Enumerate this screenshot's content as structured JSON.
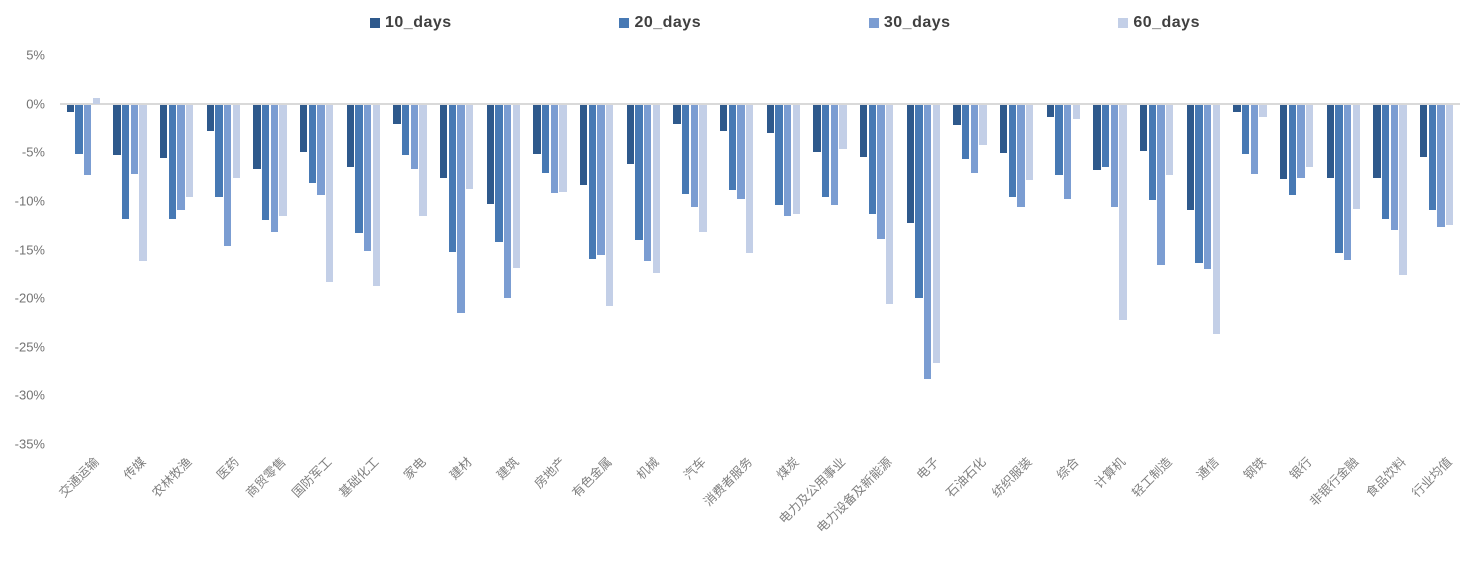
{
  "chart_data": {
    "type": "bar",
    "title": "",
    "xlabel": "",
    "ylabel": "",
    "ylim": [
      -35,
      5
    ],
    "ytick_step": 5,
    "yticks": [
      {
        "value": 5,
        "label": "5%"
      },
      {
        "value": 0,
        "label": "0%"
      },
      {
        "value": -5,
        "label": "-5%"
      },
      {
        "value": -10,
        "label": "-10%"
      },
      {
        "value": -15,
        "label": "-15%"
      },
      {
        "value": -20,
        "label": "-20%"
      },
      {
        "value": -25,
        "label": "-25%"
      },
      {
        "value": -30,
        "label": "-30%"
      },
      {
        "value": -35,
        "label": "-35%"
      }
    ],
    "grid": false,
    "zero_line_color": "#d9d9d9",
    "legend_position": "top",
    "categories": [
      "交通运输",
      "传媒",
      "农林牧渔",
      "医药",
      "商贸零售",
      "国防军工",
      "基础化工",
      "家电",
      "建材",
      "建筑",
      "房地产",
      "有色金属",
      "机械",
      "汽车",
      "消费者服务",
      "煤炭",
      "电力及公用事业",
      "电力设备及新能源",
      "电子",
      "石油石化",
      "纺织服装",
      "综合",
      "计算机",
      "轻工制造",
      "通信",
      "钢铁",
      "银行",
      "非银行金融",
      "食品饮料",
      "行业均值"
    ],
    "series": [
      {
        "name": "10_days",
        "color": "#2E598C",
        "values": [
          -0.9,
          -5.3,
          -5.6,
          -2.8,
          -6.7,
          -5.0,
          -6.5,
          -2.1,
          -7.6,
          -10.3,
          -5.2,
          -8.4,
          -6.2,
          -2.1,
          -2.8,
          -3.0,
          -5.0,
          -5.5,
          -12.3,
          -2.2,
          -5.1,
          -1.4,
          -6.8,
          -4.9,
          -10.9,
          -0.9,
          -7.8,
          -7.6,
          -7.6,
          -5.5
        ]
      },
      {
        "name": "20_days",
        "color": "#4779B4",
        "values": [
          -5.2,
          -11.9,
          -11.9,
          -9.6,
          -12.0,
          -8.2,
          -13.3,
          -5.3,
          -15.3,
          -14.2,
          -7.1,
          -16.0,
          -14.0,
          -9.3,
          -8.9,
          -10.4,
          -9.6,
          -11.4,
          -20.0,
          -5.7,
          -9.6,
          -7.3,
          -6.5,
          -9.9,
          -16.4,
          -5.2,
          -9.4,
          -15.4,
          -11.9,
          -10.9
        ]
      },
      {
        "name": "30_days",
        "color": "#7B9DD2",
        "values": [
          -7.3,
          -7.2,
          -10.9,
          -14.6,
          -13.2,
          -9.4,
          -15.2,
          -6.7,
          -21.5,
          -20.0,
          -9.2,
          -15.6,
          -16.2,
          -10.6,
          -9.8,
          -11.6,
          -10.4,
          -13.9,
          -28.3,
          -7.1,
          -10.6,
          -9.8,
          -10.6,
          -16.6,
          -17.0,
          -7.2,
          -7.6,
          -16.1,
          -13.0,
          -12.7
        ]
      },
      {
        "name": "60_days",
        "color": "#C3CFE7",
        "values": [
          0.6,
          -16.2,
          -9.6,
          -7.6,
          -11.6,
          -18.3,
          -18.8,
          -11.6,
          -8.8,
          -16.9,
          -9.1,
          -20.8,
          -17.4,
          -13.2,
          -15.4,
          -11.3,
          -4.7,
          -20.6,
          -26.7,
          -4.3,
          -7.9,
          -1.6,
          -22.3,
          -7.3,
          -23.7,
          -1.4,
          -6.5,
          -10.8,
          -17.6,
          -12.5
        ]
      }
    ]
  }
}
